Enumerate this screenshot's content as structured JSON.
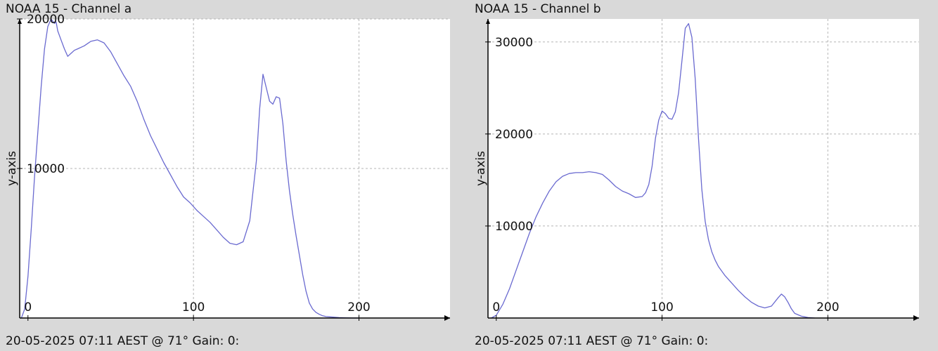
{
  "chart_data": [
    {
      "type": "line",
      "title": "NOAA 15 - Channel a",
      "xlabel": "",
      "ylabel": "y-axis",
      "footer": "20-05-2025 07:11 AEST @ 71° Gain: 0:",
      "xlim": [
        -5,
        255
      ],
      "ylim": [
        0,
        20000
      ],
      "xticks": [
        0,
        100,
        200
      ],
      "yticks": [
        10000,
        20000
      ],
      "ytick_labels": [
        "10000",
        "20000"
      ],
      "grid": true,
      "line_color": "#6a6ad0",
      "series": [
        {
          "x": [
            -4,
            -2,
            0,
            2,
            4,
            6,
            8,
            10,
            12,
            14,
            16,
            17,
            18,
            20,
            22,
            24,
            26,
            28,
            30,
            34,
            38,
            42,
            46,
            50,
            54,
            58,
            62,
            66,
            70,
            74,
            78,
            82,
            86,
            90,
            94,
            98,
            102,
            106,
            110,
            114,
            118,
            122,
            126,
            130,
            134,
            138,
            140,
            142,
            144,
            146,
            148,
            150,
            152,
            154,
            156,
            158,
            160,
            162,
            164,
            166,
            168,
            170,
            172,
            174,
            176,
            178,
            180,
            184,
            188,
            192,
            196,
            200
          ],
          "y": [
            0,
            600,
            2800,
            6000,
            9500,
            12500,
            15500,
            18000,
            19500,
            20000,
            19700,
            19800,
            19200,
            18600,
            18000,
            17500,
            17700,
            17900,
            18000,
            18200,
            18500,
            18600,
            18400,
            17800,
            17000,
            16200,
            15500,
            14500,
            13300,
            12200,
            11300,
            10400,
            9600,
            8800,
            8100,
            7700,
            7200,
            6800,
            6400,
            5900,
            5400,
            5000,
            4900,
            5100,
            6500,
            10500,
            14000,
            16300,
            15400,
            14500,
            14300,
            14800,
            14700,
            13000,
            10500,
            8500,
            6900,
            5500,
            4200,
            2900,
            1800,
            1000,
            600,
            380,
            250,
            150,
            100,
            60,
            30,
            10,
            0,
            0
          ]
        }
      ]
    },
    {
      "type": "line",
      "title": "NOAA 15 - Channel b",
      "xlabel": "",
      "ylabel": "y-axis",
      "footer": "20-05-2025 07:11 AEST @ 71° Gain: 0:",
      "xlim": [
        -5,
        255
      ],
      "ylim": [
        0,
        32500
      ],
      "xticks": [
        0,
        100,
        200
      ],
      "yticks": [
        10000,
        20000,
        30000
      ],
      "ytick_labels": [
        "10000",
        "20000",
        "30000"
      ],
      "grid": true,
      "line_color": "#6a6ad0",
      "series": [
        {
          "x": [
            -3,
            0,
            4,
            8,
            12,
            16,
            20,
            24,
            28,
            32,
            36,
            40,
            44,
            48,
            52,
            56,
            60,
            64,
            68,
            72,
            76,
            80,
            84,
            88,
            90,
            92,
            94,
            96,
            98,
            100,
            102,
            104,
            106,
            108,
            110,
            112,
            114,
            116,
            118,
            120,
            122,
            124,
            126,
            128,
            130,
            132,
            134,
            138,
            142,
            146,
            150,
            154,
            158,
            162,
            166,
            170,
            172,
            174,
            176,
            178,
            180,
            184,
            188,
            192
          ],
          "y": [
            0,
            300,
            1500,
            3200,
            5200,
            7200,
            9200,
            11000,
            12500,
            13800,
            14800,
            15400,
            15700,
            15800,
            15800,
            15900,
            15800,
            15600,
            15000,
            14300,
            13800,
            13500,
            13100,
            13200,
            13600,
            14500,
            16500,
            19500,
            21500,
            22500,
            22200,
            21700,
            21600,
            22400,
            24500,
            28000,
            31500,
            32000,
            30500,
            26000,
            19500,
            14000,
            10500,
            8500,
            7200,
            6300,
            5600,
            4600,
            3800,
            3000,
            2300,
            1700,
            1300,
            1100,
            1300,
            2200,
            2600,
            2300,
            1700,
            1000,
            500,
            200,
            50,
            0
          ]
        }
      ]
    }
  ]
}
